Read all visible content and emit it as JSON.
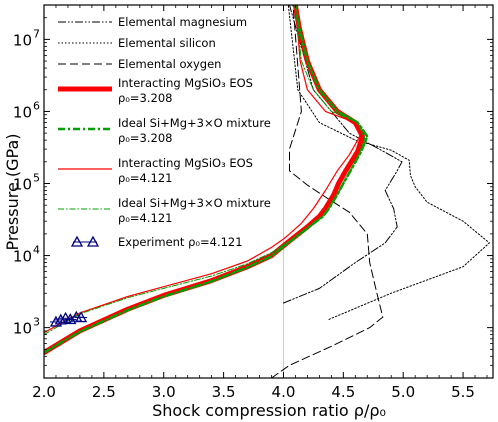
{
  "chart_data": {
    "type": "line",
    "xlabel": "Shock compression ratio ρ/ρ₀",
    "ylabel": "Pressure (GPa)",
    "x_scale": "linear",
    "y_scale": "log",
    "xlim": [
      2.0,
      5.75
    ],
    "ylim": [
      200,
      30000000
    ],
    "x_ticks": [
      "2.0",
      "2.5",
      "3.0",
      "3.5",
      "4.0",
      "4.5",
      "5.0",
      "5.5"
    ],
    "y_ticks": [
      {
        "value": 1000,
        "base": "10",
        "exp": "3"
      },
      {
        "value": 10000,
        "base": "10",
        "exp": "4"
      },
      {
        "value": 100000,
        "base": "10",
        "exp": "5"
      },
      {
        "value": 1000000,
        "base": "10",
        "exp": "6"
      },
      {
        "value": 10000000,
        "base": "10",
        "exp": "7"
      }
    ],
    "grid": false,
    "legend_position": "top-left",
    "reference_line": {
      "x": 4.0,
      "color": "#cccccc"
    },
    "series": [
      {
        "name": "Elemental magnesium",
        "color": "#000000",
        "width": 1,
        "dash": "8,2,1.5,2,1.5,2",
        "points": [
          [
            4.0,
            2200
          ],
          [
            4.3,
            3500
          ],
          [
            4.6,
            8000
          ],
          [
            4.85,
            15000
          ],
          [
            4.95,
            25000
          ],
          [
            4.92,
            45000
          ],
          [
            4.85,
            80000
          ],
          [
            4.95,
            150000
          ],
          [
            4.99,
            200000
          ],
          [
            4.8,
            300000
          ],
          [
            4.55,
            500000
          ],
          [
            4.25,
            2000000
          ],
          [
            4.05,
            30000000
          ]
        ]
      },
      {
        "name": "Elemental silicon",
        "color": "#000000",
        "width": 1,
        "dash": "1.5,2",
        "points": [
          [
            4.38,
            1300
          ],
          [
            4.9,
            3000
          ],
          [
            5.5,
            7000
          ],
          [
            5.72,
            15000
          ],
          [
            5.5,
            30000
          ],
          [
            5.2,
            55000
          ],
          [
            5.1,
            90000
          ],
          [
            5.06,
            130000
          ],
          [
            5.05,
            210000
          ],
          [
            4.9,
            290000
          ],
          [
            4.6,
            400000
          ],
          [
            4.3,
            700000
          ],
          [
            4.12,
            2000000
          ],
          [
            4.04,
            30000000
          ]
        ]
      },
      {
        "name": "Elemental oxygen",
        "color": "#000000",
        "width": 1,
        "dash": "8,4",
        "points": [
          [
            3.9,
            200
          ],
          [
            4.05,
            300
          ],
          [
            4.4,
            550
          ],
          [
            4.72,
            1000
          ],
          [
            4.83,
            1400
          ],
          [
            4.78,
            3000
          ],
          [
            4.72,
            8000
          ],
          [
            4.7,
            20000
          ],
          [
            4.55,
            40000
          ],
          [
            4.35,
            65000
          ],
          [
            4.2,
            95000
          ],
          [
            4.05,
            150000
          ],
          [
            4.05,
            300000
          ],
          [
            4.15,
            1000000
          ],
          [
            4.08,
            30000000
          ]
        ]
      },
      {
        "name": "Interacting MgSiO₃ EOS",
        "legend_line2": "ρ₀=3.208",
        "color": "#ff0000",
        "width": 5,
        "dash": "",
        "points": [
          [
            2.0,
            450
          ],
          [
            2.3,
            900
          ],
          [
            2.7,
            1800
          ],
          [
            3.0,
            2800
          ],
          [
            3.4,
            4500
          ],
          [
            3.7,
            7000
          ],
          [
            3.9,
            10000
          ],
          [
            4.05,
            16000
          ],
          [
            4.2,
            25000
          ],
          [
            4.3,
            35000
          ],
          [
            4.35,
            45000
          ],
          [
            4.42,
            70000
          ],
          [
            4.46,
            100000
          ],
          [
            4.52,
            150000
          ],
          [
            4.62,
            280000
          ],
          [
            4.66,
            450000
          ],
          [
            4.6,
            700000
          ],
          [
            4.45,
            1000000
          ],
          [
            4.3,
            2000000
          ],
          [
            4.2,
            5000000
          ],
          [
            4.13,
            15000000
          ],
          [
            4.1,
            30000000
          ]
        ]
      },
      {
        "name": "Ideal Si+Mg+3×O mixture",
        "legend_line2": "ρ₀=3.208",
        "color": "#00a000",
        "width": 2.5,
        "dash": "7,3,2,3",
        "points": [
          [
            2.0,
            450
          ],
          [
            2.3,
            880
          ],
          [
            2.7,
            1750
          ],
          [
            3.0,
            2700
          ],
          [
            3.4,
            4400
          ],
          [
            3.7,
            6900
          ],
          [
            3.9,
            9800
          ],
          [
            4.05,
            15500
          ],
          [
            4.2,
            24000
          ],
          [
            4.33,
            35000
          ],
          [
            4.38,
            45000
          ],
          [
            4.45,
            70000
          ],
          [
            4.5,
            100000
          ],
          [
            4.56,
            150000
          ],
          [
            4.65,
            280000
          ],
          [
            4.7,
            450000
          ],
          [
            4.62,
            700000
          ],
          [
            4.45,
            1000000
          ],
          [
            4.3,
            2000000
          ],
          [
            4.2,
            5000000
          ],
          [
            4.13,
            15000000
          ],
          [
            4.1,
            30000000
          ]
        ]
      },
      {
        "name": "Interacting MgSiO₃ EOS",
        "legend_line2": "ρ₀=4.121",
        "color": "#ff0000",
        "width": 1.2,
        "dash": "",
        "points": [
          [
            2.0,
            850
          ],
          [
            2.3,
            1600
          ],
          [
            2.7,
            2700
          ],
          [
            3.0,
            3700
          ],
          [
            3.4,
            5600
          ],
          [
            3.7,
            8400
          ],
          [
            3.9,
            13000
          ],
          [
            4.0,
            17000
          ],
          [
            4.05,
            20000
          ],
          [
            4.15,
            28000
          ],
          [
            4.25,
            45000
          ],
          [
            4.35,
            80000
          ],
          [
            4.45,
            150000
          ],
          [
            4.55,
            250000
          ],
          [
            4.62,
            400000
          ],
          [
            4.65,
            500000
          ],
          [
            4.6,
            700000
          ],
          [
            4.35,
            1000000
          ],
          [
            4.2,
            2000000
          ],
          [
            4.14,
            5000000
          ],
          [
            4.1,
            30000000
          ]
        ]
      },
      {
        "name": "Ideal Si+Mg+3×O mixture",
        "legend_line2": "ρ₀=4.121",
        "color": "#00a000",
        "width": 1,
        "dash": "6,2,1.5,2",
        "points": [
          [
            2.0,
            800
          ],
          [
            2.3,
            1550
          ],
          [
            2.7,
            2600
          ],
          [
            3.0,
            3500
          ],
          [
            3.4,
            5200
          ],
          [
            3.7,
            7700
          ],
          [
            3.9,
            11000
          ],
          [
            4.05,
            16000
          ],
          [
            4.2,
            24000
          ],
          [
            4.33,
            35000
          ],
          [
            4.4,
            50000
          ],
          [
            4.46,
            75000
          ],
          [
            4.52,
            120000
          ],
          [
            4.62,
            230000
          ],
          [
            4.68,
            420000
          ],
          [
            4.62,
            700000
          ],
          [
            4.4,
            1000000
          ],
          [
            4.25,
            2000000
          ],
          [
            4.15,
            5000000
          ],
          [
            4.1,
            30000000
          ]
        ]
      }
    ],
    "experiment": {
      "name": "Experiment ρ₀=4.121",
      "color": "#000080",
      "points": [
        [
          2.1,
          1200
        ],
        [
          2.14,
          1280
        ],
        [
          2.18,
          1350
        ],
        [
          2.22,
          1300
        ],
        [
          2.27,
          1400
        ],
        [
          2.31,
          1380
        ]
      ],
      "x_err": 0.05
    }
  }
}
